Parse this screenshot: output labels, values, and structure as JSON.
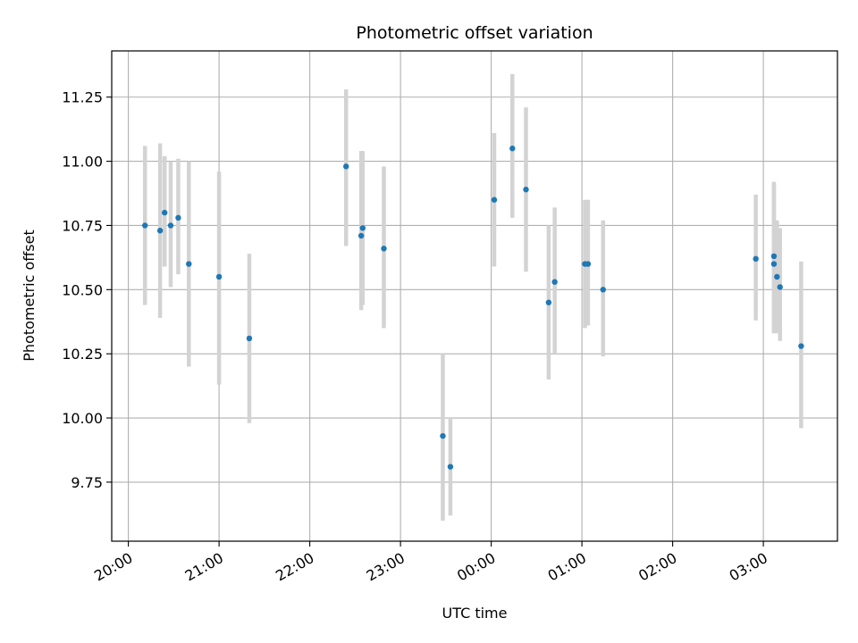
{
  "chart_data": {
    "type": "scatter",
    "title": "Photometric offset variation",
    "xlabel": "UTC time",
    "ylabel": "Photometric offset",
    "grid": true,
    "ylim": [
      9.52,
      11.43
    ],
    "xlim": [
      "19:49",
      "03:49"
    ],
    "y_ticks": [
      9.75,
      10.0,
      10.25,
      10.5,
      10.75,
      11.0,
      11.25
    ],
    "y_tick_labels": [
      "9.75",
      "10.00",
      "10.25",
      "10.50",
      "10.75",
      "11.00",
      "11.25"
    ],
    "x_ticks": [
      "20:00",
      "21:00",
      "22:00",
      "23:00",
      "00:00",
      "01:00",
      "02:00",
      "03:00"
    ],
    "colors": {
      "point": "#1f77b4",
      "errorbar": "#d3d3d3",
      "grid": "#b0b0b0"
    },
    "series": [
      {
        "points": [
          {
            "t": "20:11",
            "y": 10.75,
            "lo": 10.44,
            "hi": 11.06
          },
          {
            "t": "20:21",
            "y": 10.73,
            "lo": 10.39,
            "hi": 11.07
          },
          {
            "t": "20:24",
            "y": 10.8,
            "lo": 10.59,
            "hi": 11.02
          },
          {
            "t": "20:28",
            "y": 10.75,
            "lo": 10.51,
            "hi": 11.0
          },
          {
            "t": "20:33",
            "y": 10.78,
            "lo": 10.56,
            "hi": 11.01
          },
          {
            "t": "20:40",
            "y": 10.6,
            "lo": 10.2,
            "hi": 11.0
          },
          {
            "t": "21:00",
            "y": 10.55,
            "lo": 10.13,
            "hi": 10.96
          },
          {
            "t": "21:20",
            "y": 10.31,
            "lo": 9.98,
            "hi": 10.64
          },
          {
            "t": "22:24",
            "y": 10.98,
            "lo": 10.67,
            "hi": 11.28
          },
          {
            "t": "22:34",
            "y": 10.71,
            "lo": 10.42,
            "hi": 11.04
          },
          {
            "t": "22:35",
            "y": 10.74,
            "lo": 10.44,
            "hi": 11.04
          },
          {
            "t": "22:49",
            "y": 10.66,
            "lo": 10.35,
            "hi": 10.98
          },
          {
            "t": "23:28",
            "y": 9.93,
            "lo": 9.6,
            "hi": 10.25
          },
          {
            "t": "23:33",
            "y": 9.81,
            "lo": 9.62,
            "hi": 10.0
          },
          {
            "t": "00:02",
            "y": 10.85,
            "lo": 10.59,
            "hi": 11.11
          },
          {
            "t": "00:14",
            "y": 11.05,
            "lo": 10.78,
            "hi": 11.34
          },
          {
            "t": "00:23",
            "y": 10.89,
            "lo": 10.57,
            "hi": 11.21
          },
          {
            "t": "00:38",
            "y": 10.45,
            "lo": 10.15,
            "hi": 10.75
          },
          {
            "t": "00:42",
            "y": 10.53,
            "lo": 10.25,
            "hi": 10.82
          },
          {
            "t": "01:02",
            "y": 10.6,
            "lo": 10.35,
            "hi": 10.85
          },
          {
            "t": "01:04",
            "y": 10.6,
            "lo": 10.36,
            "hi": 10.85
          },
          {
            "t": "01:14",
            "y": 10.5,
            "lo": 10.24,
            "hi": 10.77
          },
          {
            "t": "02:55",
            "y": 10.62,
            "lo": 10.38,
            "hi": 10.87
          },
          {
            "t": "03:07",
            "y": 10.63,
            "lo": 10.33,
            "hi": 10.92
          },
          {
            "t": "03:07",
            "y": 10.6,
            "lo": 10.33,
            "hi": 10.91
          },
          {
            "t": "03:09",
            "y": 10.55,
            "lo": 10.33,
            "hi": 10.77
          },
          {
            "t": "03:11",
            "y": 10.51,
            "lo": 10.3,
            "hi": 10.74
          },
          {
            "t": "03:25",
            "y": 10.28,
            "lo": 9.96,
            "hi": 10.61
          }
        ]
      }
    ]
  }
}
